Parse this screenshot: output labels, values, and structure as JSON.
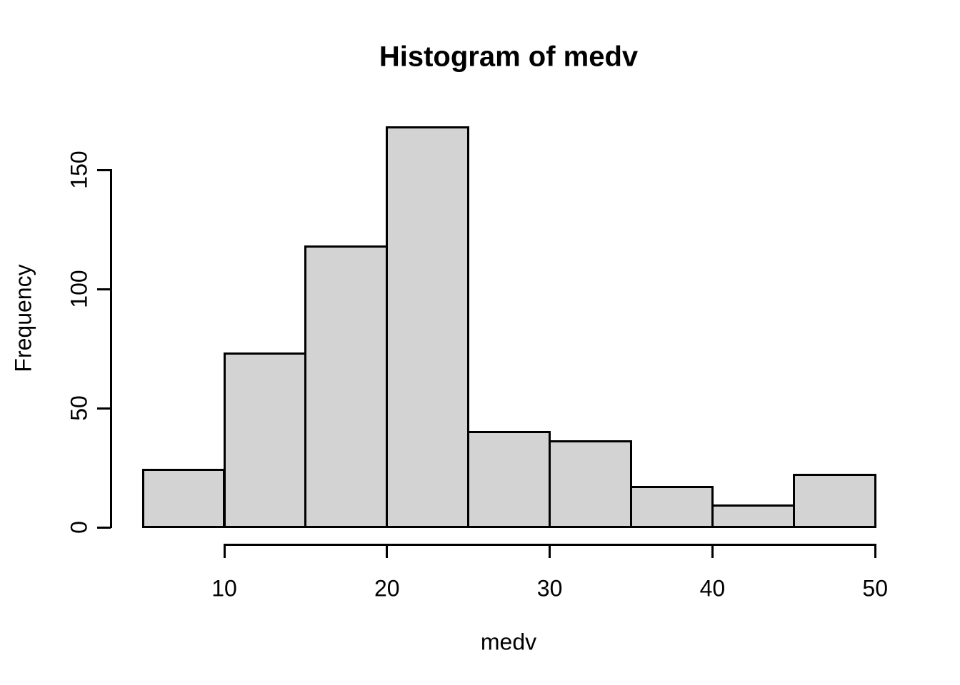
{
  "figure": {
    "background": "#ffffff"
  },
  "chart_data": {
    "type": "bar",
    "subtype": "histogram",
    "title": "Histogram of medv",
    "xlabel": "medv",
    "ylabel": "Frequency",
    "bin_edges": [
      5,
      10,
      15,
      20,
      25,
      30,
      35,
      40,
      45,
      50
    ],
    "categories": [
      "5-10",
      "10-15",
      "15-20",
      "20-25",
      "25-30",
      "30-35",
      "35-40",
      "40-45",
      "45-50"
    ],
    "values": [
      24,
      73,
      118,
      168,
      40,
      36,
      17,
      9,
      22
    ],
    "x_ticks": [
      10,
      20,
      30,
      40,
      50
    ],
    "y_ticks": [
      0,
      50,
      100,
      150
    ],
    "xlim": [
      5,
      50
    ],
    "ylim": [
      0,
      170
    ],
    "grid": false,
    "legend": false,
    "bar_fill": "#d3d3d3",
    "bar_border": "#000000",
    "axis_color": "#000000",
    "text_color": "#000000"
  }
}
